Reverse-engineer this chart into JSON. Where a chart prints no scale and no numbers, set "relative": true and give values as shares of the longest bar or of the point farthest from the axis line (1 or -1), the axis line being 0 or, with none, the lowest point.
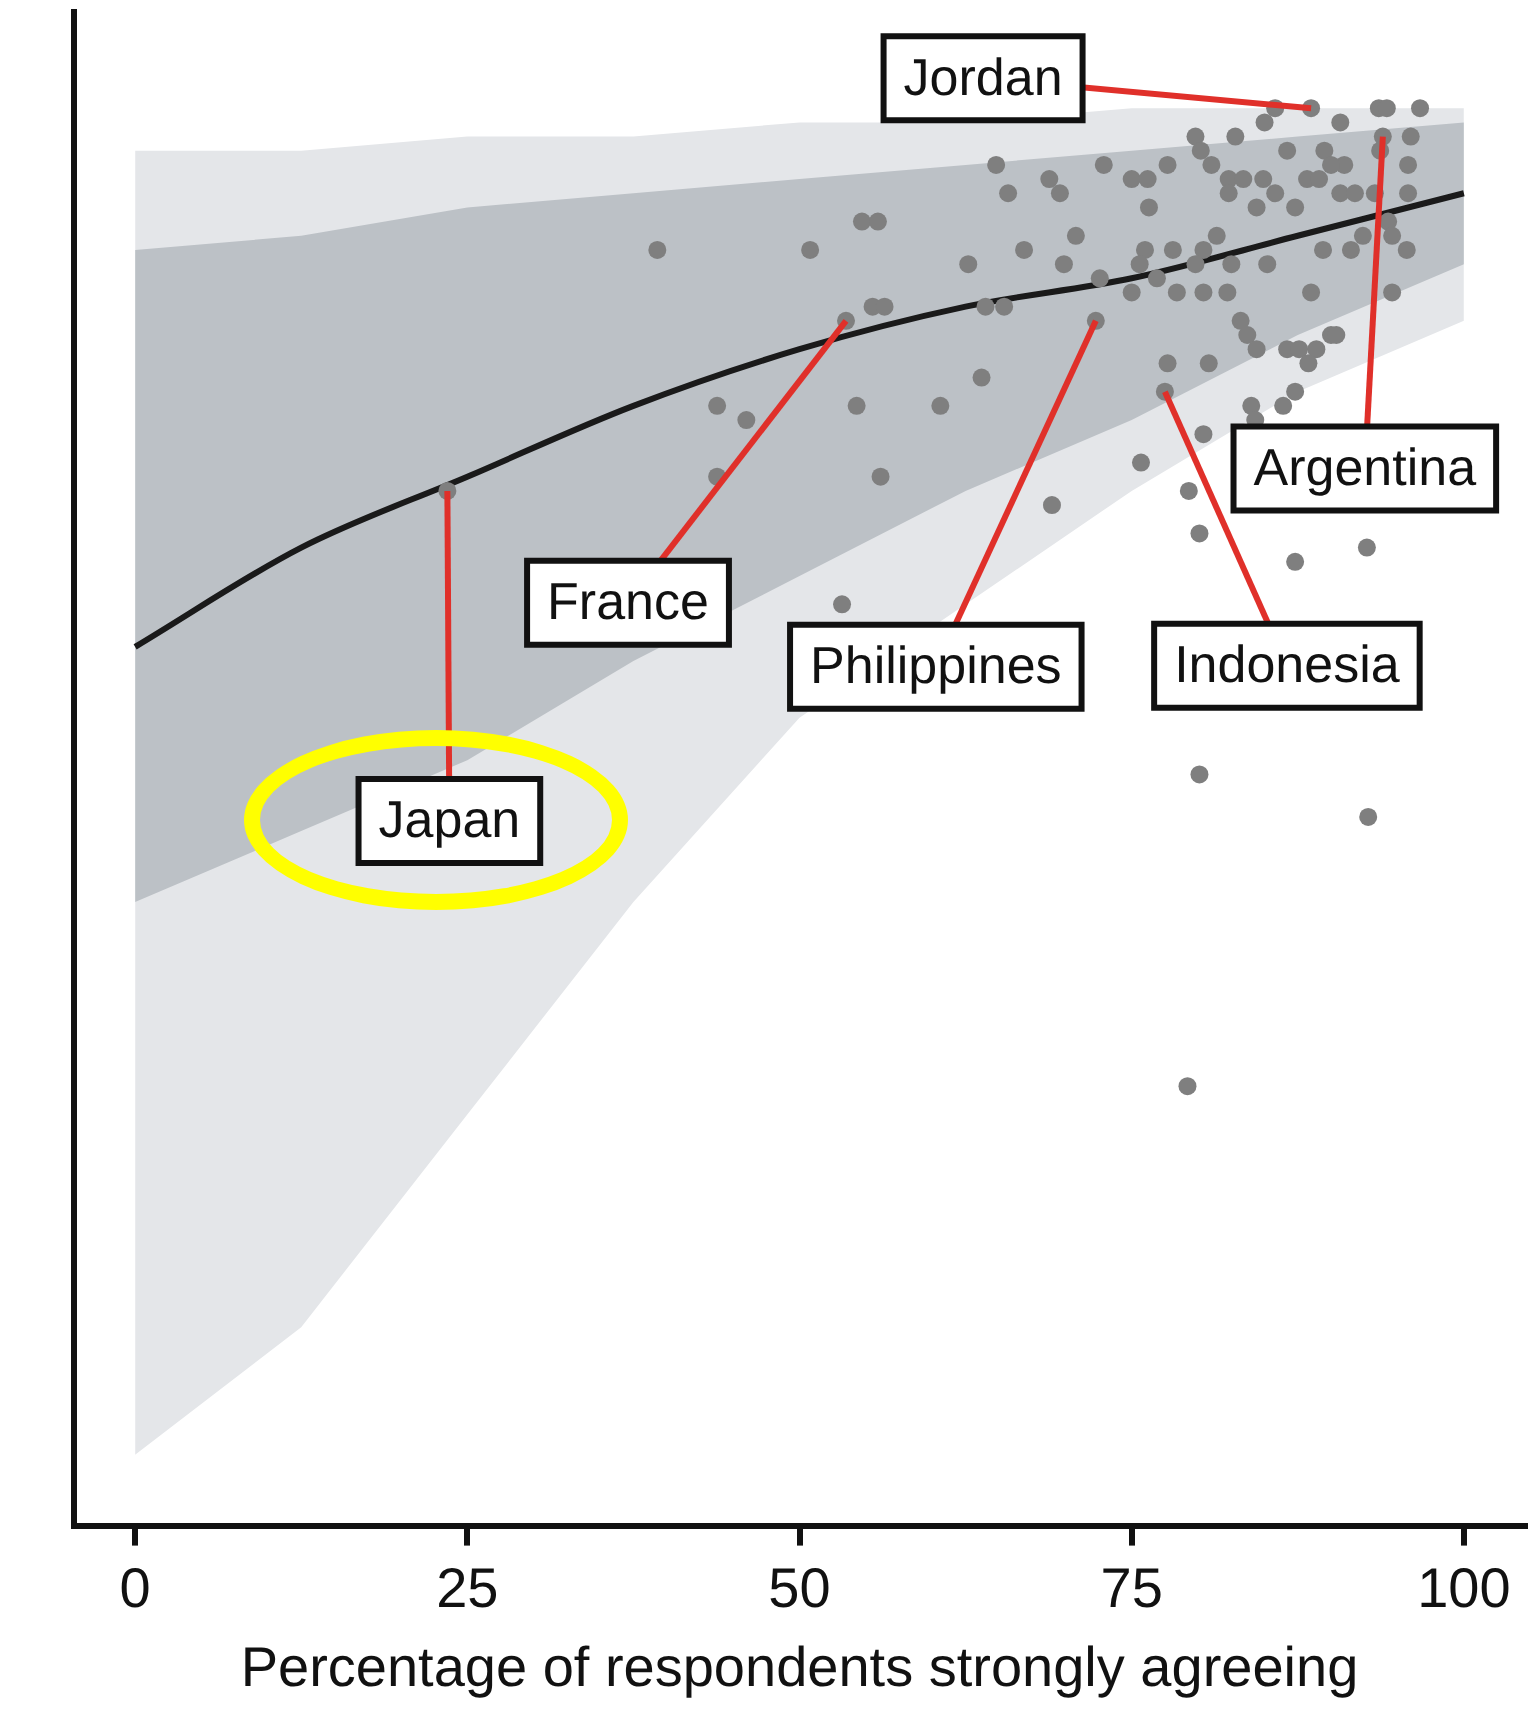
{
  "chart_data": {
    "type": "scatter",
    "relative": true,
    "xlabel": "Percentage of respondents strongly agreeing",
    "xlim": [
      -4.6,
      104.6
    ],
    "xticks": [
      0,
      25,
      50,
      75,
      100
    ],
    "tick_labels": "x",
    "grid": false,
    "legend": false,
    "marker": "circle",
    "series": [
      {
        "type": "area",
        "color": "#e4e6e9",
        "x": [
          0,
          12.5,
          25,
          37.5,
          50,
          62.5,
          75,
          87.5,
          100
        ],
        "values": [
          null,
          null,
          null,
          null,
          null,
          null,
          null,
          null,
          null
        ],
        "lower": [
          0.05,
          0.14,
          0.29,
          0.44,
          0.57,
          0.65,
          0.73,
          0.8,
          0.85
        ],
        "upper": [
          0.97,
          0.97,
          0.98,
          0.98,
          0.99,
          0.99,
          1.0,
          1.0,
          1.0
        ]
      },
      {
        "type": "area",
        "color": "#bcc1c6",
        "x": [
          0,
          12.5,
          25,
          37.5,
          50,
          62.5,
          75,
          87.5,
          100
        ],
        "values": [
          null,
          null,
          null,
          null,
          null,
          null,
          null,
          null,
          null
        ],
        "lower": [
          0.44,
          0.49,
          0.54,
          0.61,
          0.67,
          0.73,
          0.78,
          0.84,
          0.89
        ],
        "upper": [
          0.9,
          0.91,
          0.93,
          0.94,
          0.95,
          0.96,
          0.97,
          0.98,
          0.99
        ]
      },
      {
        "type": "line",
        "marker": "none",
        "color": "#1a1a1a",
        "x": [
          0,
          12.5,
          25,
          37.5,
          50,
          62.5,
          75,
          87.5,
          100
        ],
        "values": [
          0.62,
          0.69,
          0.74,
          0.79,
          0.83,
          0.86,
          0.88,
          0.91,
          0.94
        ]
      },
      {
        "color": "#7f7f7f",
        "x": [
          39.3,
          50.8,
          54.7,
          55.9,
          64.8,
          65.7,
          66.9,
          62.7,
          64.0,
          65.4,
          53.5,
          55.5,
          56.4,
          43.8,
          46.0,
          54.3,
          60.6,
          63.7,
          56.1,
          43.8,
          53.2,
          88.5,
          85.8,
          93.6,
          94.2,
          96.7,
          85.0,
          90.7,
          89.5,
          93.9,
          79.8,
          80.2,
          82.8,
          81.0,
          84.9,
          86.7,
          91.0,
          93.7,
          96.0,
          95.8,
          95.8,
          68.8,
          69.6,
          72.9,
          75.0,
          76.2,
          77.7,
          76.3,
          82.3,
          82.3,
          83.4,
          84.4,
          85.8,
          87.3,
          88.2,
          89.1,
          90.0,
          90.7,
          91.8,
          93.3,
          94.3,
          94.6,
          91.5,
          92.4,
          70.8,
          69.9,
          76.0,
          75.6,
          78.1,
          80.4,
          81.4,
          79.8,
          82.5,
          85.2,
          89.4,
          95.7,
          72.6,
          75.0,
          76.9,
          78.4,
          82.2,
          80.4,
          88.5,
          72.3,
          94.6,
          83.2,
          83.7,
          90.0,
          84.4,
          86.7,
          87.6,
          88.9,
          77.7,
          77.5,
          80.8,
          90.4,
          88.3,
          87.3,
          86.4,
          84.0,
          84.3,
          80.4,
          75.7,
          69.0,
          79.3,
          80.1,
          87.3,
          92.7,
          80.1,
          92.8,
          79.2,
          23.5
        ],
        "values": [
          0.9,
          0.9,
          0.92,
          0.92,
          0.96,
          0.94,
          0.9,
          0.89,
          0.86,
          0.86,
          0.85,
          0.86,
          0.86,
          0.79,
          0.78,
          0.79,
          0.79,
          0.81,
          0.74,
          0.74,
          0.65,
          1.0,
          1.0,
          1.0,
          1.0,
          1.0,
          0.99,
          0.99,
          0.97,
          0.98,
          0.98,
          0.97,
          0.98,
          0.96,
          0.95,
          0.97,
          0.96,
          0.97,
          0.98,
          0.96,
          0.94,
          0.95,
          0.94,
          0.96,
          0.95,
          0.95,
          0.96,
          0.93,
          0.95,
          0.94,
          0.95,
          0.93,
          0.94,
          0.93,
          0.95,
          0.95,
          0.96,
          0.94,
          0.94,
          0.94,
          0.92,
          0.91,
          0.9,
          0.91,
          0.91,
          0.89,
          0.9,
          0.89,
          0.9,
          0.9,
          0.91,
          0.89,
          0.89,
          0.89,
          0.9,
          0.9,
          0.88,
          0.87,
          0.88,
          0.87,
          0.87,
          0.87,
          0.87,
          0.85,
          0.87,
          0.85,
          0.84,
          0.84,
          0.83,
          0.83,
          0.83,
          0.83,
          0.82,
          0.8,
          0.82,
          0.84,
          0.82,
          0.8,
          0.79,
          0.79,
          0.78,
          0.77,
          0.75,
          0.72,
          0.73,
          0.7,
          0.68,
          0.69,
          0.53,
          0.5,
          0.31,
          0.73
        ]
      }
    ],
    "annotations": [
      {
        "text": "Jordan",
        "x": 88.5,
        "y": 1.0
      },
      {
        "text": "France",
        "x": 53.5,
        "y": 0.85
      },
      {
        "text": "Philippines",
        "x": 72.3,
        "y": 0.85
      },
      {
        "text": "Indonesia",
        "x": 77.5,
        "y": 0.8
      },
      {
        "text": "Argentina",
        "x": 93.9,
        "y": 0.98
      },
      {
        "text": "Japan",
        "x": 23.5,
        "y": 0.73
      }
    ]
  }
}
